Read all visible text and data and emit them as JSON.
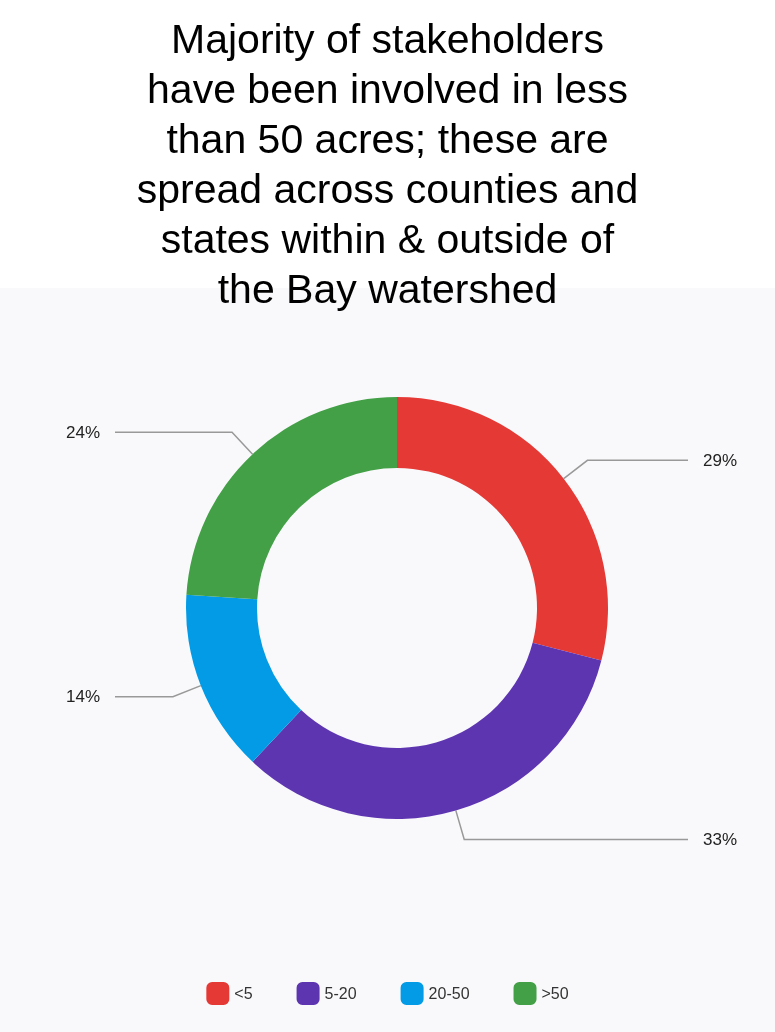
{
  "chart_data": {
    "type": "donut",
    "title": "Majority of stakeholders have been involved in less than 50 acres; these are spread across counties and states within & outside of the Bay watershed",
    "categories": [
      "<5",
      "5-20",
      "20-50",
      ">50"
    ],
    "values": [
      29,
      33,
      14,
      24
    ],
    "value_labels": [
      "29%",
      "33%",
      "14%",
      "24%"
    ],
    "colors": [
      "#e53935",
      "#5e35b1",
      "#039be5",
      "#43a047"
    ],
    "legend": "bottom"
  }
}
